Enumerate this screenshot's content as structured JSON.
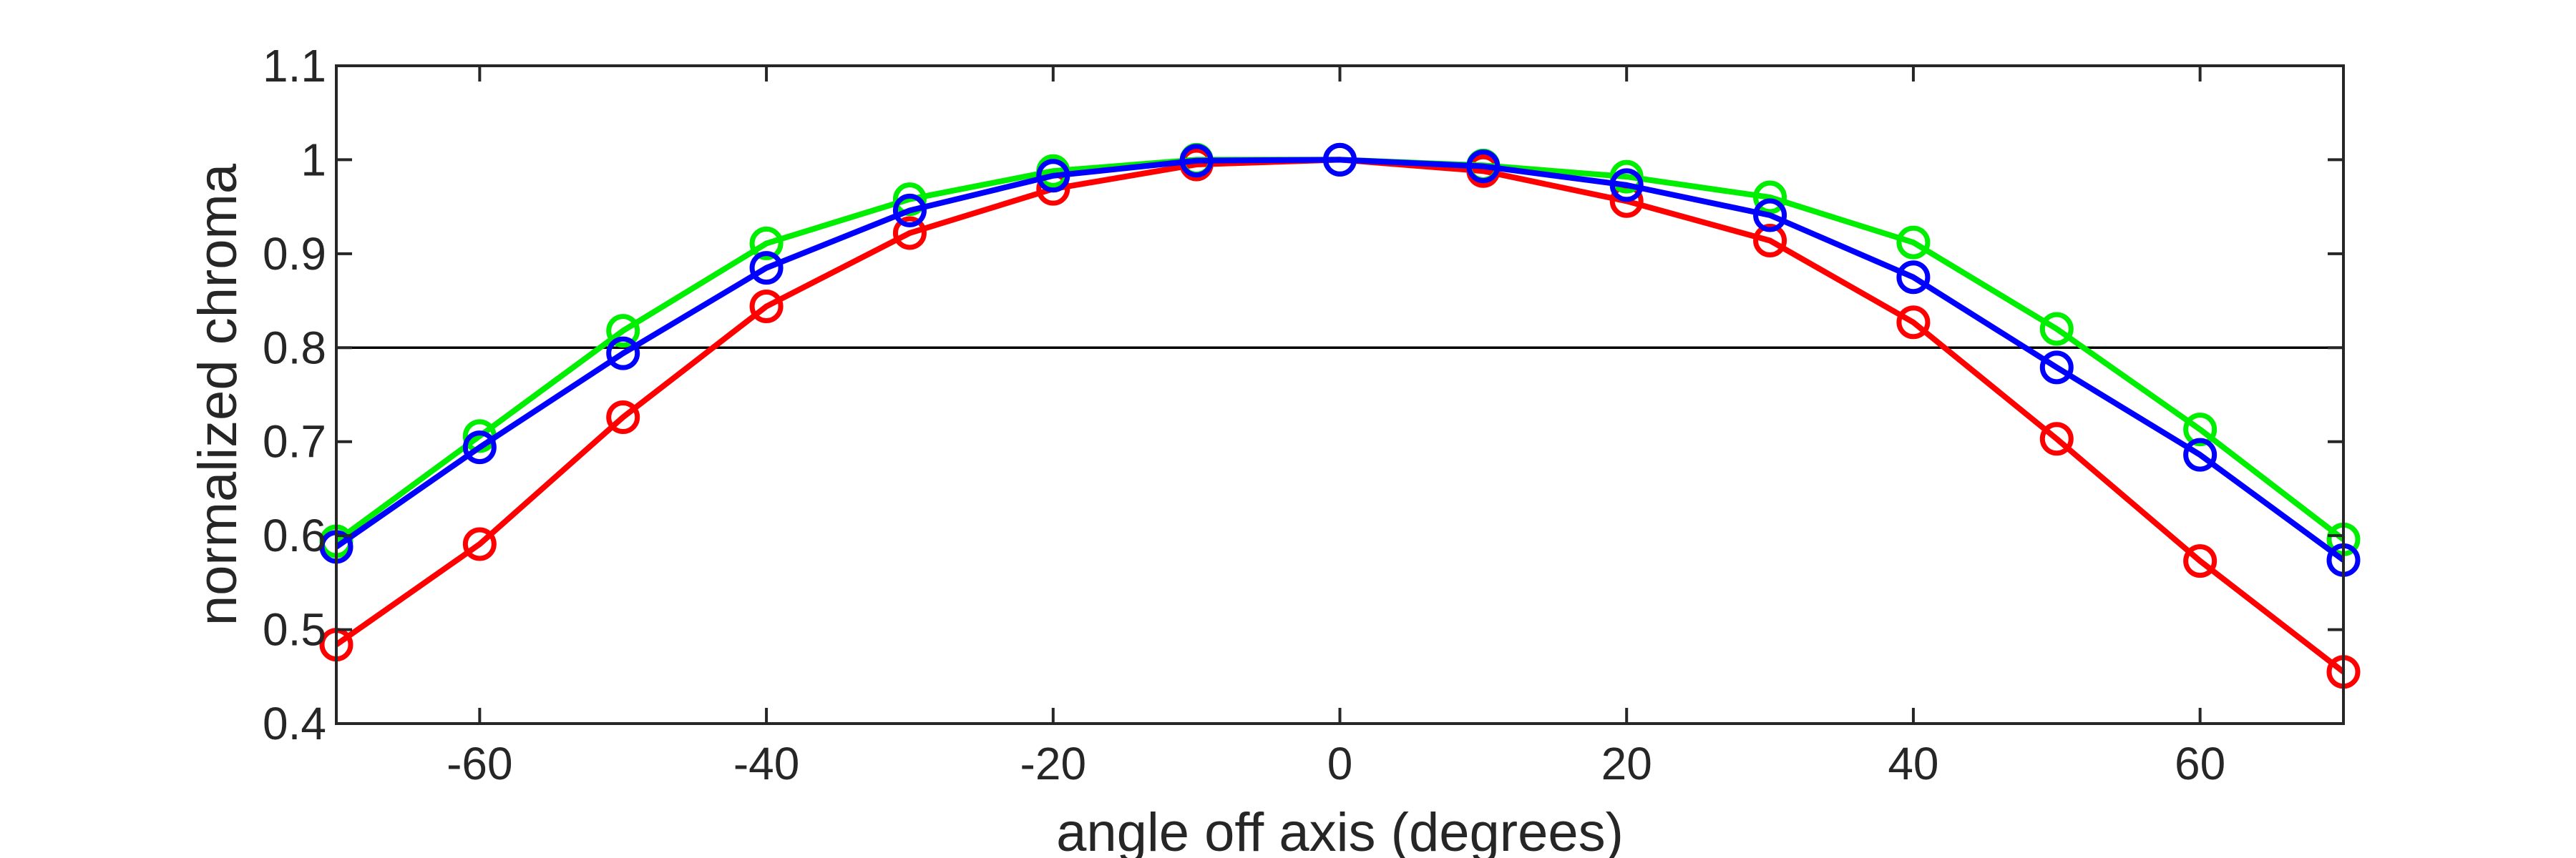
{
  "chart_data": {
    "type": "line",
    "xlabel": "angle off axis (degrees)",
    "ylabel": "normalized chroma",
    "xlim": [
      -70,
      70
    ],
    "ylim": [
      0.4,
      1.1
    ],
    "xticks": [
      -60,
      -40,
      -20,
      0,
      20,
      40,
      60
    ],
    "yticks": [
      0.4,
      0.5,
      0.6,
      0.7,
      0.8,
      0.9,
      1,
      1.1
    ],
    "xtick_labels": [
      "-60",
      "-40",
      "-20",
      "0",
      "20",
      "40",
      "60"
    ],
    "ytick_labels": [
      "0.4",
      "0.5",
      "0.6",
      "0.7",
      "0.8",
      "0.9",
      "1",
      "1.1"
    ],
    "reference_line": {
      "y": 0.8,
      "color": "#000000"
    },
    "grid": false,
    "legend": "none",
    "marker": "circle",
    "x": [
      -70,
      -60,
      -50,
      -40,
      -30,
      -20,
      -10,
      0,
      10,
      20,
      30,
      40,
      50,
      60,
      70
    ],
    "series": [
      {
        "color": "#ff0000",
        "values": [
          0.484,
          0.591,
          0.726,
          0.844,
          0.922,
          0.969,
          0.995,
          1.0,
          0.988,
          0.956,
          0.914,
          0.827,
          0.703,
          0.573,
          0.455
        ]
      },
      {
        "color": "#00ee00",
        "values": [
          0.594,
          0.706,
          0.818,
          0.911,
          0.958,
          0.988,
          1.0,
          1.0,
          0.994,
          0.982,
          0.96,
          0.912,
          0.82,
          0.713,
          0.596
        ]
      },
      {
        "color": "#0000ff",
        "values": [
          0.588,
          0.694,
          0.794,
          0.885,
          0.946,
          0.983,
          0.999,
          1.0,
          0.993,
          0.973,
          0.941,
          0.875,
          0.779,
          0.686,
          0.574
        ]
      }
    ]
  }
}
